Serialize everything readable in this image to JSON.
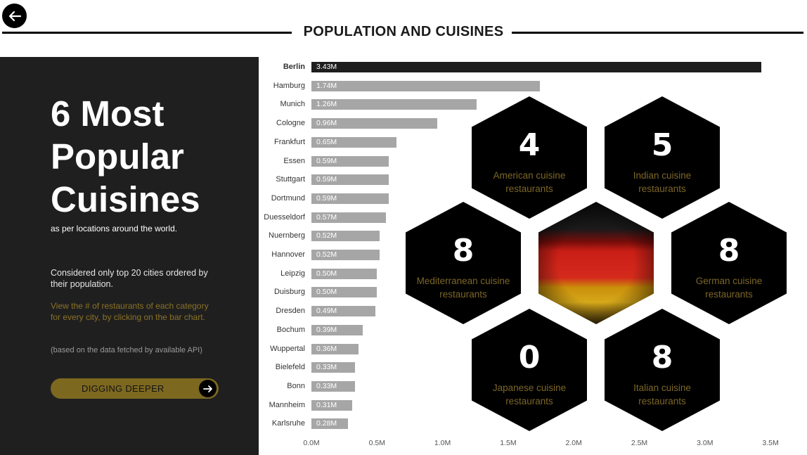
{
  "header": {
    "title": "POPULATION AND CUISINES"
  },
  "left_panel": {
    "headline": "6 Most Popular Cuisines",
    "subtitle": "as per locations around the world.",
    "note": "Considered only top 20 cities ordered by their population.",
    "hint": "View the # of restaurants of each category for every city, by clicking on the bar chart.",
    "source": "(based on the data fetched by available API)",
    "button_label": "DIGGING DEEPER"
  },
  "colors": {
    "panel_bg": "#1f1f1f",
    "accent_gold": "#7d6820",
    "bar_default": "#a6a6a6",
    "bar_selected": "#1e1e1e"
  },
  "chart_data": {
    "type": "bar",
    "orientation": "horizontal",
    "categories": [
      "Berlin",
      "Hamburg",
      "Munich",
      "Cologne",
      "Frankfurt",
      "Essen",
      "Stuttgart",
      "Dortmund",
      "Duesseldorf",
      "Nuernberg",
      "Hannover",
      "Leipzig",
      "Duisburg",
      "Dresden",
      "Bochum",
      "Wuppertal",
      "Bielefeld",
      "Bonn",
      "Mannheim",
      "Karlsruhe"
    ],
    "values": [
      3.43,
      1.74,
      1.26,
      0.96,
      0.65,
      0.59,
      0.59,
      0.59,
      0.57,
      0.52,
      0.52,
      0.5,
      0.5,
      0.49,
      0.39,
      0.36,
      0.33,
      0.33,
      0.31,
      0.28
    ],
    "data_labels": [
      "3.43M",
      "1.74M",
      "1.26M",
      "0.96M",
      "0.65M",
      "0.59M",
      "0.59M",
      "0.59M",
      "0.57M",
      "0.52M",
      "0.52M",
      "0.50M",
      "0.50M",
      "0.49M",
      "0.39M",
      "0.36M",
      "0.33M",
      "0.33M",
      "0.31M",
      "0.28M"
    ],
    "unit": "M",
    "xlim": [
      0,
      3.5
    ],
    "x_ticks": [
      "0.0M",
      "0.5M",
      "1.0M",
      "1.5M",
      "2.0M",
      "2.5M",
      "3.0M",
      "3.5M"
    ],
    "selected": "Berlin"
  },
  "cuisines": [
    {
      "count": "4",
      "label_line1": "American cuisine",
      "label_line2": "restaurants"
    },
    {
      "count": "5",
      "label_line1": "Indian cuisine",
      "label_line2": "restaurants"
    },
    {
      "count": "8",
      "label_line1": "Mediterranean cuisine",
      "label_line2": "restaurants"
    },
    {
      "count": "8",
      "label_line1": "German cuisine",
      "label_line2": "restaurants"
    },
    {
      "count": "0",
      "label_line1": "Japanese cuisine",
      "label_line2": "restaurants"
    },
    {
      "count": "8",
      "label_line1": "Italian cuisine",
      "label_line2": "restaurants"
    }
  ],
  "flag": {
    "colors": [
      "#0d0d0d",
      "#d9221a",
      "#e6b800"
    ]
  },
  "icons": {
    "back": "arrow-left-icon",
    "button_arrow": "arrow-right-icon"
  }
}
